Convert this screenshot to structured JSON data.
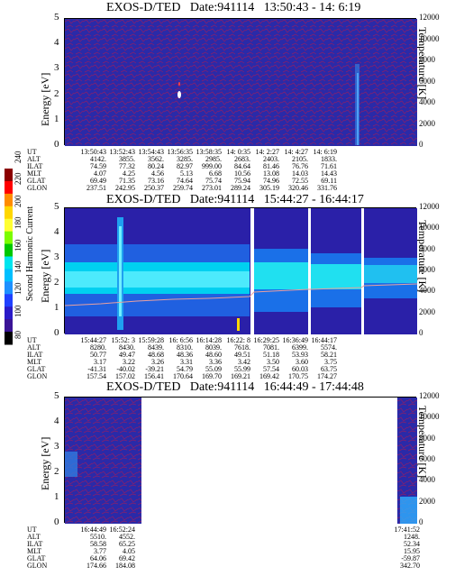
{
  "colorbar": {
    "label": "Second Harmonic Current",
    "ticks": [
      "240",
      "220",
      "200",
      "180",
      "160",
      "140",
      "120",
      "100",
      "80"
    ],
    "colors": [
      "#8b0000",
      "#ff0000",
      "#ff8c00",
      "#ffd700",
      "#ffff33",
      "#7cfc00",
      "#00c800",
      "#00e5ee",
      "#00bfff",
      "#1e90ff",
      "#2040ff",
      "#2a1ac8",
      "#3a1496",
      "#000000"
    ]
  },
  "chart_data": [
    {
      "type": "heatmap",
      "title": "EXOS-D/TED   Date:941114   13:50:43 - 14: 6:19",
      "ylabel": "Energy [eV]",
      "y2label": "Temperature [K]",
      "yticks": [
        "5",
        "4",
        "3",
        "2",
        "1",
        "0"
      ],
      "y2ticks": [
        "12000",
        "10000",
        "8000",
        "6000",
        "4000",
        "2000",
        "0"
      ],
      "ylim": [
        0,
        5
      ],
      "y2lim": [
        0,
        12000
      ],
      "orbit_labels": [
        "UT",
        "ALT",
        "ILAT",
        "MLT",
        "GLAT",
        "GLON"
      ],
      "orbit_columns": [
        [
          "13:50:43",
          "4142.",
          "74.59",
          "4.07",
          "69.49",
          "237.51"
        ],
        [
          "13:52:43",
          "3855.",
          "77.32",
          "4.25",
          "71.35",
          "242.95"
        ],
        [
          "13:54:43",
          "3562.",
          "80.24",
          "4.56",
          "73.16",
          "250.37"
        ],
        [
          "13:56:35",
          "3285.",
          "82.97",
          "5.13",
          "74.64",
          "259.74"
        ],
        [
          "13:58:35",
          "2985.",
          "999.00",
          "6.68",
          "75.74",
          "273.01"
        ],
        [
          "14: 0:35",
          "2683.",
          "84.64",
          "10.56",
          "75.94",
          "289.24"
        ],
        [
          "14: 2:27",
          "2403.",
          "81.46",
          "13.08",
          "74.96",
          "305.19"
        ],
        [
          "14: 4:27",
          "2105.",
          "76.76",
          "14.03",
          "72.55",
          "320.46"
        ],
        [
          "14: 6:19",
          "1833.",
          "71.61",
          "14.43",
          "69.11",
          "331.76"
        ]
      ]
    },
    {
      "type": "heatmap",
      "title": "EXOS-D/TED   Date:941114   15:44:27 - 16:44:17",
      "ylabel": "Energy [eV]",
      "y2label": "Temperature [K]",
      "yticks": [
        "5",
        "4",
        "3",
        "2",
        "1",
        "0"
      ],
      "y2ticks": [
        "12000",
        "10000",
        "8000",
        "6000",
        "4000",
        "2000",
        "0"
      ],
      "ylim": [
        0,
        5
      ],
      "y2lim": [
        0,
        12000
      ],
      "orbit_labels": [
        "UT",
        "ALT",
        "ILAT",
        "MLT",
        "GLAT",
        "GLON"
      ],
      "orbit_columns": [
        [
          "15:44:27",
          "8280.",
          "50.77",
          "3.17",
          "-41.31",
          "157.54"
        ],
        [
          "15:52: 3",
          "8430.",
          "49.47",
          "3.22",
          "-40.02",
          "157.02"
        ],
        [
          "15:59:28",
          "8439.",
          "48.68",
          "3.26",
          "-39.21",
          "156.41"
        ],
        [
          "16: 6:56",
          "8310.",
          "48.36",
          "3.31",
          "54.79",
          "170.64"
        ],
        [
          "16:14:28",
          "8039.",
          "48.60",
          "3.36",
          "55.09",
          "169.70"
        ],
        [
          "16:22: 8",
          "7618.",
          "49.51",
          "3.42",
          "55.99",
          "169.21"
        ],
        [
          "16:29:25",
          "7081.",
          "51.18",
          "3.50",
          "57.54",
          "169.42"
        ],
        [
          "16:36:49",
          "6399.",
          "53.93",
          "3.60",
          "60.03",
          "170.75"
        ],
        [
          "16:44:17",
          "5574.",
          "58.21",
          "3.75",
          "63.75",
          "174.27"
        ]
      ]
    },
    {
      "type": "heatmap",
      "title": "EXOS-D/TED   Date:941114   16:44:49 - 17:44:48",
      "ylabel": "Energy [eV]",
      "y2label": "Temperature [K]",
      "yticks": [
        "5",
        "4",
        "3",
        "2",
        "1",
        "0"
      ],
      "y2ticks": [
        "12000",
        "10000",
        "8000",
        "6000",
        "4000",
        "2000",
        "0"
      ],
      "ylim": [
        0,
        5
      ],
      "y2lim": [
        0,
        12000
      ],
      "orbit_labels": [
        "UT",
        "ALT",
        "ILAT",
        "MLT",
        "GLAT",
        "GLON"
      ],
      "orbit_columns": [
        [
          "16:44:49",
          "5510.",
          "58.58",
          "3.77",
          "64.06",
          "174.66"
        ],
        [
          "16:52:24",
          "4552.",
          "65.25",
          "4.05",
          "69.42",
          "184.08"
        ],
        [
          "17:41:52",
          "1248.",
          "52.34",
          "15.95",
          "-59.87",
          "342.70"
        ]
      ]
    }
  ]
}
